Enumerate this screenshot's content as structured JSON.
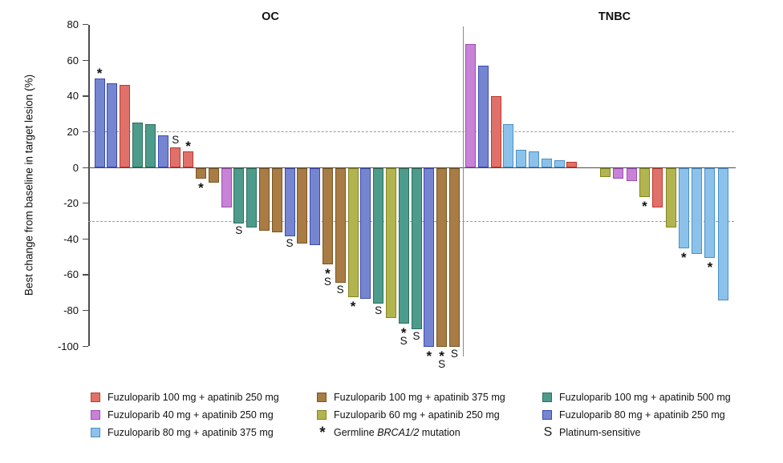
{
  "chart_data": {
    "type": "bar",
    "subtype": "waterfall",
    "ylabel": "Best change from baseline in target lesion (%)",
    "ylim": [
      -100,
      80
    ],
    "yticks": [
      80,
      60,
      40,
      20,
      0,
      -20,
      -40,
      -60,
      -80,
      -100
    ],
    "reference_lines": [
      20,
      -30
    ],
    "grid": "off",
    "legend_position": "bottom",
    "groups": {
      "f100_a250": {
        "label": "Fuzuloparib 100 mg + apatinib 250 mg",
        "fill": "#e0716a",
        "border": "#c0392b"
      },
      "f100_a375": {
        "label": "Fuzuloparib 100 mg + apatinib 375 mg",
        "fill": "#a97c45",
        "border": "#7a5620"
      },
      "f100_a500": {
        "label": "Fuzuloparib 100 mg + apatinib 500 mg",
        "fill": "#4d9b8b",
        "border": "#2e6e5e"
      },
      "f40_a250": {
        "label": "Fuzuloparib 40 mg + apatinib 250 mg",
        "fill": "#c882d7",
        "border": "#9b4fb0"
      },
      "f60_a250": {
        "label": "Fuzuloparib 60 mg + apatinib 250 mg",
        "fill": "#b2b44f",
        "border": "#85861f"
      },
      "f80_a250": {
        "label": "Fuzuloparib 80 mg + apatinib 250 mg",
        "fill": "#7585d0",
        "border": "#3a4bb5"
      },
      "f80_a375": {
        "label": "Fuzuloparib 80 mg + apatinib 375 mg",
        "fill": "#8cc2ea",
        "border": "#4a90c8"
      }
    },
    "symbols": {
      "star": {
        "glyph": "*",
        "label_parts": [
          {
            "text": "Germline "
          },
          {
            "text": "BRCA1/2",
            "italic": true
          },
          {
            "text": " mutation"
          }
        ]
      },
      "platinum": {
        "glyph": "S",
        "label_parts": [
          {
            "text": "Platinum-sensitive"
          }
        ]
      }
    },
    "legend_columns": [
      [
        "f100_a250",
        "f40_a250",
        "f80_a375"
      ],
      [
        "f100_a375",
        "f60_a250",
        "star"
      ],
      [
        "f100_a500",
        "f80_a250",
        "platinum"
      ]
    ],
    "panels": [
      {
        "title": "OC",
        "bars": [
          {
            "value": 50,
            "group": "f80_a250",
            "marks": [
              "*"
            ]
          },
          {
            "value": 47,
            "group": "f80_a250",
            "marks": []
          },
          {
            "value": 46,
            "group": "f100_a250",
            "marks": []
          },
          {
            "value": 25,
            "group": "f100_a500",
            "marks": []
          },
          {
            "value": 24,
            "group": "f100_a500",
            "marks": []
          },
          {
            "value": 18,
            "group": "f80_a250",
            "marks": []
          },
          {
            "value": 11,
            "group": "f100_a250",
            "marks": [
              "S"
            ]
          },
          {
            "value": 9,
            "group": "f100_a250",
            "marks": [
              "*"
            ]
          },
          {
            "value": -6,
            "group": "f100_a375",
            "marks": [
              "*"
            ]
          },
          {
            "value": -8,
            "group": "f100_a375",
            "marks": []
          },
          {
            "value": -22,
            "group": "f40_a250",
            "marks": []
          },
          {
            "value": -31,
            "group": "f100_a500",
            "marks": [
              "S"
            ]
          },
          {
            "value": -33,
            "group": "f100_a500",
            "marks": []
          },
          {
            "value": -35,
            "group": "f100_a375",
            "marks": []
          },
          {
            "value": -36,
            "group": "f100_a375",
            "marks": []
          },
          {
            "value": -38,
            "group": "f80_a250",
            "marks": [
              "S"
            ]
          },
          {
            "value": -42,
            "group": "f100_a375",
            "marks": []
          },
          {
            "value": -43,
            "group": "f80_a250",
            "marks": []
          },
          {
            "value": -54,
            "group": "f100_a375",
            "marks": [
              "*",
              "S"
            ]
          },
          {
            "value": -64,
            "group": "f100_a375",
            "marks": [
              "S"
            ]
          },
          {
            "value": -72,
            "group": "f60_a250",
            "marks": [
              "*"
            ]
          },
          {
            "value": -73,
            "group": "f80_a250",
            "marks": []
          },
          {
            "value": -76,
            "group": "f100_a500",
            "marks": [
              "S"
            ]
          },
          {
            "value": -84,
            "group": "f60_a250",
            "marks": []
          },
          {
            "value": -87,
            "group": "f100_a500",
            "marks": [
              "*",
              "S"
            ]
          },
          {
            "value": -90,
            "group": "f100_a500",
            "marks": [
              "S"
            ]
          },
          {
            "value": -100,
            "group": "f80_a250",
            "marks": [
              "*"
            ]
          },
          {
            "value": -100,
            "group": "f100_a375",
            "marks": [
              "*",
              "S"
            ]
          },
          {
            "value": -100,
            "group": "f100_a375",
            "marks": [
              "S"
            ]
          }
        ]
      },
      {
        "title": "TNBC",
        "bars": [
          {
            "value": 69,
            "group": "f40_a250",
            "marks": []
          },
          {
            "value": 57,
            "group": "f80_a250",
            "marks": []
          },
          {
            "value": 40,
            "group": "f100_a250",
            "marks": []
          },
          {
            "value": 24,
            "group": "f80_a375",
            "marks": []
          },
          {
            "value": 10,
            "group": "f80_a375",
            "marks": []
          },
          {
            "value": 9,
            "group": "f80_a375",
            "marks": []
          },
          {
            "value": 5,
            "group": "f80_a375",
            "marks": []
          },
          {
            "value": 4,
            "group": "f80_a375",
            "marks": []
          },
          {
            "value": 3,
            "group": "f100_a250",
            "marks": []
          },
          {
            "value": -5,
            "group": "f60_a250",
            "marks": []
          },
          {
            "value": -6,
            "group": "f40_a250",
            "marks": []
          },
          {
            "value": -7,
            "group": "f40_a250",
            "marks": []
          },
          {
            "value": -16,
            "group": "f60_a250",
            "marks": [
              "*"
            ]
          },
          {
            "value": -22,
            "group": "f100_a250",
            "marks": []
          },
          {
            "value": -33,
            "group": "f60_a250",
            "marks": []
          },
          {
            "value": -45,
            "group": "f80_a375",
            "marks": [
              "*"
            ]
          },
          {
            "value": -48,
            "group": "f80_a375",
            "marks": []
          },
          {
            "value": -50,
            "group": "f80_a375",
            "marks": [
              "*"
            ]
          },
          {
            "value": -74,
            "group": "f80_a375",
            "marks": []
          }
        ]
      }
    ]
  }
}
